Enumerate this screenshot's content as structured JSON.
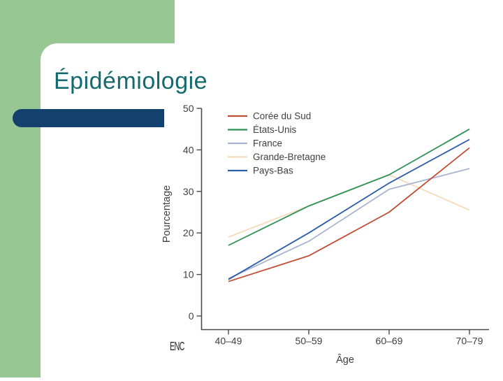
{
  "slide": {
    "title": "Épidémiologie"
  },
  "footer": {
    "logo": "ENC"
  },
  "colors": {
    "sidebar_green": "#97c893",
    "accent_navy": "#14406e",
    "title_teal": "#156a6e",
    "axis": "#4a4a4a",
    "chart_text": "#3f3f3f"
  },
  "chart_data": {
    "type": "line",
    "title": "",
    "xlabel": "Âge",
    "ylabel": "Pourcentage",
    "categories": [
      "40–49",
      "50–59",
      "60–69",
      "70–79"
    ],
    "y_ticks": [
      0,
      10,
      20,
      30,
      40,
      50
    ],
    "ylim": [
      0,
      50
    ],
    "grid": false,
    "legend_position": "top-left",
    "series": [
      {
        "name": "Corée du Sud",
        "color": "#c14e35",
        "values": [
          8.3,
          14.5,
          25,
          40.5
        ]
      },
      {
        "name": "États-Unis",
        "color": "#2e9155",
        "values": [
          17,
          26.5,
          34,
          45
        ]
      },
      {
        "name": "France",
        "color": "#a9b4d2",
        "values": [
          9,
          18,
          30.5,
          35.5
        ]
      },
      {
        "name": "Grande-Bretagne",
        "color": "#f4dcba",
        "values": [
          19,
          26.5,
          34,
          25.5
        ]
      },
      {
        "name": "Pays-Bas",
        "color": "#2a5ca8",
        "values": [
          8.8,
          20,
          32,
          42.5
        ]
      }
    ]
  }
}
